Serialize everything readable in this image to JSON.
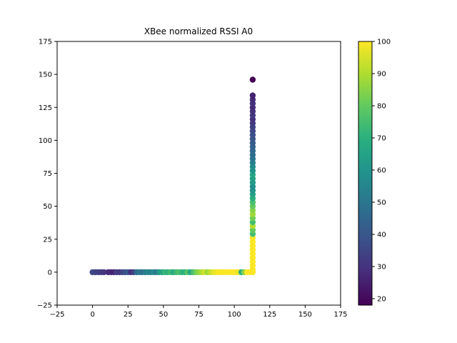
{
  "chart_data": {
    "type": "scatter",
    "title": "XBee normalized RSSI A0",
    "xlabel": "",
    "ylabel": "",
    "xlim": [
      -25,
      175
    ],
    "ylim": [
      -25,
      175
    ],
    "xticks": [
      -25,
      0,
      25,
      50,
      75,
      100,
      125,
      150,
      175
    ],
    "yticks": [
      -25,
      0,
      25,
      50,
      75,
      100,
      125,
      150,
      175
    ],
    "grid": false,
    "colormap": "viridis",
    "colorbar": {
      "range": [
        18,
        100
      ],
      "ticks": [
        20,
        30,
        40,
        50,
        60,
        70,
        80,
        90,
        100
      ]
    },
    "x_leg_points": [
      [
        0,
        0,
        36
      ],
      [
        2,
        0,
        34
      ],
      [
        4,
        0,
        33
      ],
      [
        6,
        0,
        32
      ],
      [
        8,
        0,
        31
      ],
      [
        11,
        0,
        28
      ],
      [
        13,
        0,
        27
      ],
      [
        15,
        0,
        26
      ],
      [
        17,
        0,
        33
      ],
      [
        19,
        0,
        31
      ],
      [
        21,
        0,
        35
      ],
      [
        23,
        0,
        38
      ],
      [
        25,
        0,
        40
      ],
      [
        27,
        0,
        29
      ],
      [
        29,
        0,
        33
      ],
      [
        31,
        0,
        45
      ],
      [
        33,
        0,
        50
      ],
      [
        35,
        0,
        47
      ],
      [
        37,
        0,
        52
      ],
      [
        39,
        0,
        55
      ],
      [
        41,
        0,
        53
      ],
      [
        43,
        0,
        58
      ],
      [
        45,
        0,
        50
      ],
      [
        47,
        0,
        62
      ],
      [
        49,
        0,
        66
      ],
      [
        51,
        0,
        72
      ],
      [
        53,
        0,
        70
      ],
      [
        55,
        0,
        74
      ],
      [
        57,
        0,
        68
      ],
      [
        59,
        0,
        73
      ],
      [
        61,
        0,
        76
      ],
      [
        63,
        0,
        72
      ],
      [
        65,
        0,
        70
      ],
      [
        67,
        0,
        78
      ],
      [
        69,
        0,
        66
      ],
      [
        71,
        0,
        75
      ],
      [
        73,
        0,
        82
      ],
      [
        75,
        0,
        86
      ],
      [
        77,
        0,
        90
      ],
      [
        79,
        0,
        94
      ],
      [
        81,
        0,
        88
      ],
      [
        83,
        0,
        92
      ],
      [
        85,
        0,
        96
      ],
      [
        87,
        0,
        98
      ],
      [
        89,
        0,
        100
      ],
      [
        91,
        0,
        99
      ],
      [
        93,
        0,
        100
      ],
      [
        95,
        0,
        100
      ],
      [
        97,
        0,
        100
      ],
      [
        99,
        0,
        100
      ],
      [
        101,
        0,
        100
      ],
      [
        103,
        0,
        98
      ],
      [
        105,
        0,
        70
      ],
      [
        107,
        0,
        85
      ],
      [
        109,
        0,
        100
      ],
      [
        111,
        0,
        100
      ],
      [
        113,
        0,
        100
      ]
    ],
    "y_leg_points": [
      [
        113,
        2,
        100
      ],
      [
        113,
        5,
        100
      ],
      [
        113,
        8,
        100
      ],
      [
        113,
        11,
        100
      ],
      [
        113,
        14,
        100
      ],
      [
        113,
        17,
        100
      ],
      [
        113,
        20,
        100
      ],
      [
        113,
        23,
        100
      ],
      [
        113,
        26,
        100
      ],
      [
        113,
        29,
        75
      ],
      [
        113,
        32,
        80
      ],
      [
        113,
        35,
        90
      ],
      [
        113,
        38,
        75
      ],
      [
        113,
        41,
        82
      ],
      [
        113,
        44,
        88
      ],
      [
        113,
        47,
        85
      ],
      [
        113,
        50,
        80
      ],
      [
        113,
        53,
        76
      ],
      [
        113,
        56,
        70
      ],
      [
        113,
        59,
        65
      ],
      [
        113,
        62,
        60
      ],
      [
        113,
        65,
        58
      ],
      [
        113,
        68,
        62
      ],
      [
        113,
        71,
        64
      ],
      [
        113,
        74,
        66
      ],
      [
        113,
        77,
        60
      ],
      [
        113,
        80,
        58
      ],
      [
        113,
        83,
        54
      ],
      [
        113,
        86,
        50
      ],
      [
        113,
        89,
        48
      ],
      [
        113,
        92,
        46
      ],
      [
        113,
        95,
        44
      ],
      [
        113,
        98,
        42
      ],
      [
        113,
        101,
        40
      ],
      [
        113,
        104,
        38
      ],
      [
        113,
        107,
        36
      ],
      [
        113,
        110,
        34
      ],
      [
        113,
        113,
        32
      ],
      [
        113,
        116,
        30
      ],
      [
        113,
        119,
        32
      ],
      [
        113,
        122,
        30
      ],
      [
        113,
        125,
        28
      ],
      [
        113,
        128,
        30
      ],
      [
        113,
        131,
        28
      ],
      [
        113,
        134,
        26
      ],
      [
        113,
        146,
        18
      ]
    ]
  }
}
